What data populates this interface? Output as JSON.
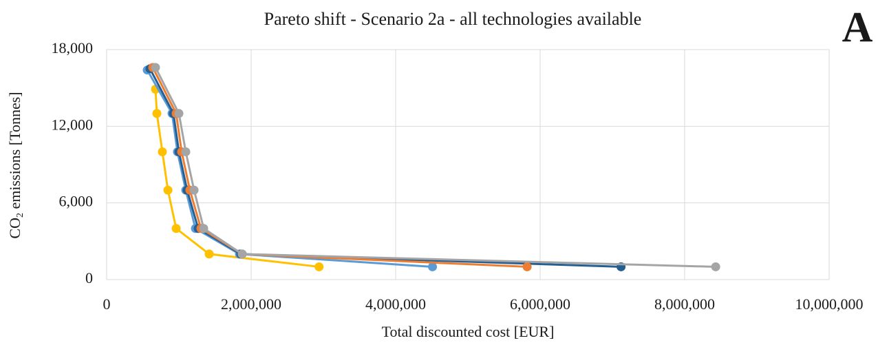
{
  "chart_data": {
    "type": "line",
    "title": "Pareto shift - Scenario 2a - all technologies available",
    "panel_label": "A",
    "xlabel": "Total discounted  cost [EUR]",
    "ylabel": [
      "CO",
      "2",
      " emissions [Tonnes]"
    ],
    "xlim": [
      0,
      10000000
    ],
    "xticks": [
      0,
      {
        "value": 2000000,
        "label": "2,000,000"
      },
      {
        "value": 4000000,
        "label": "4,000,000"
      },
      {
        "value": 6000000,
        "label": "6,000,000"
      },
      {
        "value": 8000000,
        "label": "8,000,000"
      },
      {
        "value": 10000000,
        "label": "10,000,000"
      }
    ],
    "ylim": [
      0,
      18000
    ],
    "yticks": [
      0,
      {
        "value": 6000,
        "label": "6,000"
      },
      {
        "value": 12000,
        "label": "12,000"
      },
      {
        "value": 18000,
        "label": "18,000"
      }
    ],
    "grid": true,
    "series": [
      {
        "color": "#ffc000",
        "x": [
          676000,
          695000,
          771000,
          848000,
          962000,
          1419000,
          2940000
        ],
        "values": [
          14900,
          13000,
          10000,
          7000,
          4000,
          2000,
          1000
        ]
      },
      {
        "color": "#5b9bd5",
        "x": [
          562000,
          905000,
          980000,
          1095000,
          1229000,
          1838000,
          4510000
        ],
        "values": [
          16400,
          13000,
          10000,
          7000,
          4000,
          2000,
          1000
        ]
      },
      {
        "color": "#255e91",
        "x": [
          600000,
          924000,
          1000000,
          1114000,
          1267000,
          1857000,
          7120000
        ],
        "values": [
          16500,
          13000,
          10000,
          7000,
          4000,
          2000,
          1000
        ]
      },
      {
        "color": "#ed7d31",
        "x": [
          638000,
          962000,
          1038000,
          1152000,
          1305000,
          1876000,
          5820000
        ],
        "values": [
          16600,
          13000,
          10000,
          7000,
          4000,
          2000,
          1000
        ]
      },
      {
        "color": "#a5a5a5",
        "x": [
          676000,
          1000000,
          1095000,
          1210000,
          1343000,
          1876000,
          8430000
        ],
        "values": [
          16600,
          13000,
          10000,
          7000,
          4000,
          2000,
          1000
        ]
      }
    ]
  }
}
